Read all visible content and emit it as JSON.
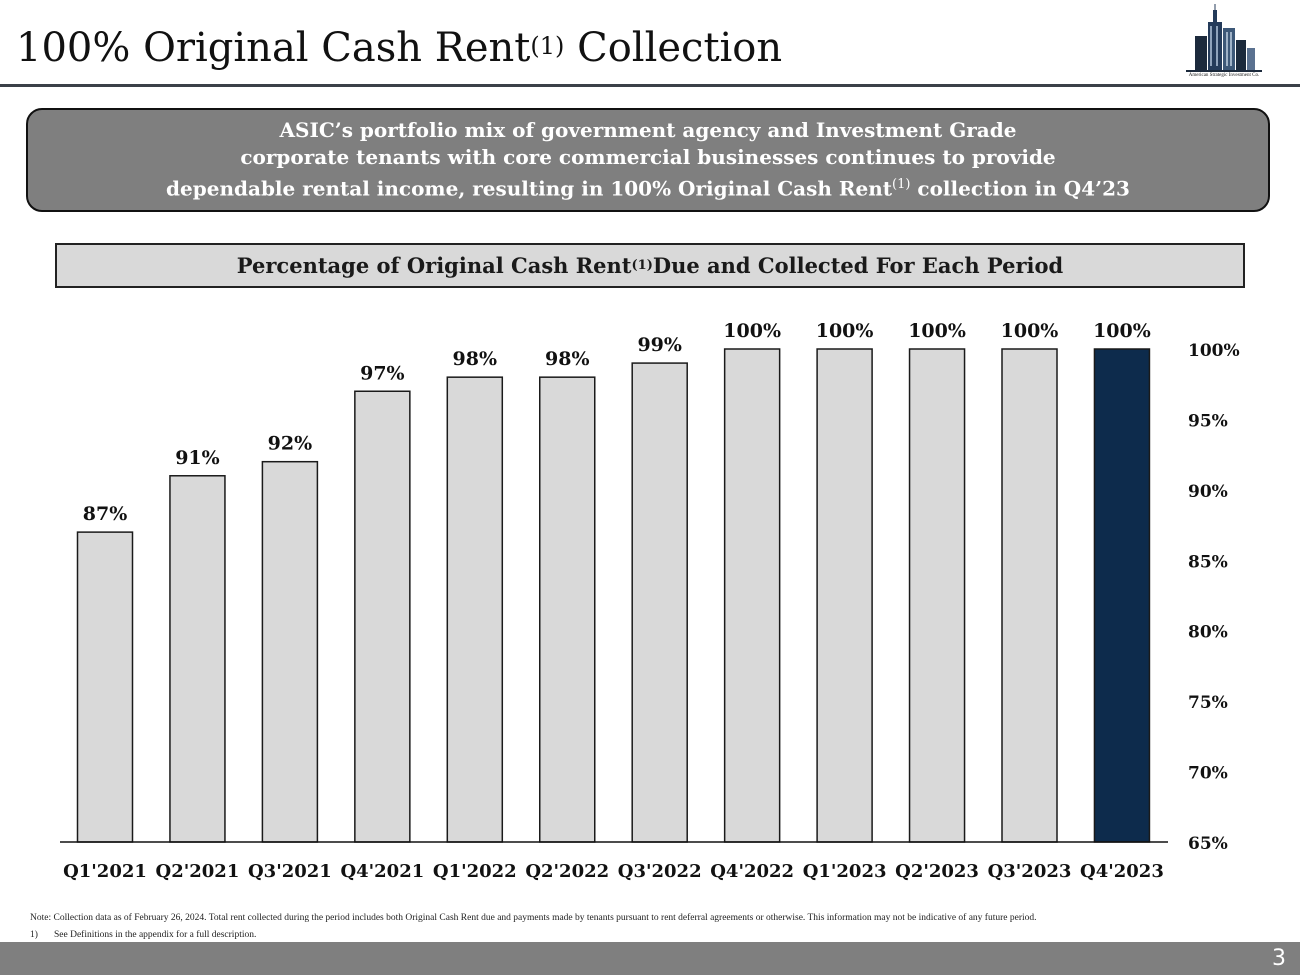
{
  "slide": {
    "title_main": "100% Original Cash Rent",
    "title_sup": "(1)",
    "title_end": " Collection",
    "logo_text": "American Strategic Investment Co.",
    "banner": {
      "line1": "ASIC’s portfolio mix of government agency and Investment Grade",
      "line2": "corporate tenants with core commercial businesses continues to provide",
      "line3_pre": "dependable rental income, resulting in 100% Original Cash Rent",
      "line3_sup": "(1)",
      "line3_post": " collection in Q4’23"
    },
    "note": "Note: Collection data as of February 26, 2024. Total rent collected during the period includes both Original Cash Rent due and payments made by tenants pursuant to rent deferral agreements or otherwise. This information may not be indicative of any future period.",
    "footnote_num": "1)",
    "footnote_text": "See Definitions in the appendix for a full description.",
    "page_number": "3"
  },
  "colors": {
    "bar": "#d9d9d9",
    "bar_highlight": "#0d2b4c",
    "bar_stroke": "#1a1a1a",
    "banner": "#7f7f7f",
    "footer": "#7f7f7f"
  },
  "chart_data": {
    "type": "bar",
    "title_pre": "Percentage of Original Cash Rent",
    "title_sup": "(1)",
    "title_post": " Due and Collected For Each Period",
    "categories": [
      "Q1'2021",
      "Q2'2021",
      "Q3'2021",
      "Q4'2021",
      "Q1'2022",
      "Q2'2022",
      "Q3'2022",
      "Q4'2022",
      "Q1'2023",
      "Q2'2023",
      "Q3'2023",
      "Q4'2023"
    ],
    "values": [
      87,
      91,
      92,
      97,
      98,
      98,
      99,
      100,
      100,
      100,
      100,
      100
    ],
    "data_labels": [
      "87%",
      "91%",
      "92%",
      "97%",
      "98%",
      "98%",
      "99%",
      "100%",
      "100%",
      "100%",
      "100%",
      "100%"
    ],
    "highlight_index": 11,
    "ylim": [
      65,
      100
    ],
    "yticks": [
      65,
      70,
      75,
      80,
      85,
      90,
      95,
      100
    ],
    "ytick_labels": [
      "65%",
      "70%",
      "75%",
      "80%",
      "85%",
      "90%",
      "95%",
      "100%"
    ],
    "y_axis_position": "right",
    "grid": false,
    "legend": "none"
  }
}
